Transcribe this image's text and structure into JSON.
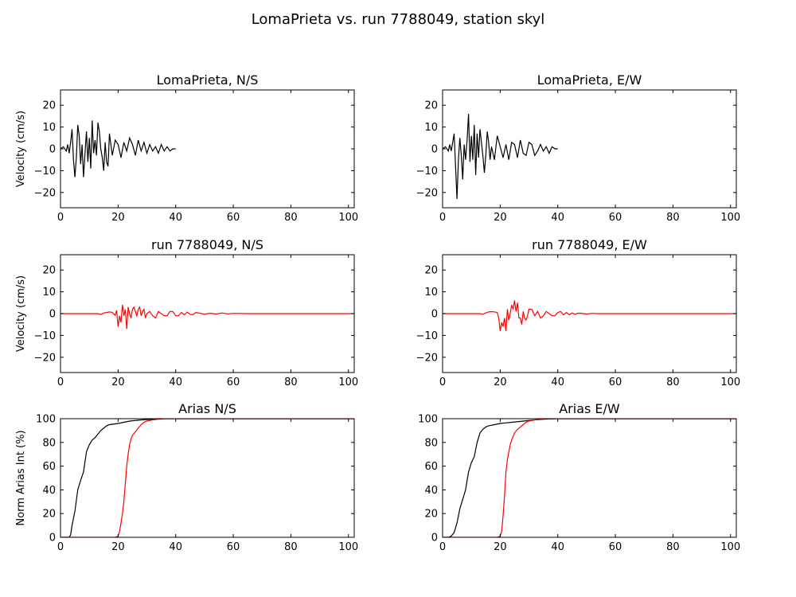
{
  "title": "LomaPrieta vs. run 7788049, station skyl",
  "colors": {
    "recorded": "#000000",
    "simulated": "#ff0000"
  },
  "chart_data": [
    {
      "id": "p0",
      "type": "line",
      "title": "LomaPrieta, N/S",
      "xlabel": "",
      "ylabel": "Velocity (cm/s)",
      "xlim": [
        0,
        102
      ],
      "ylim": [
        -27,
        27
      ],
      "xticks": [
        0,
        20,
        40,
        60,
        80,
        100
      ],
      "yticks": [
        -20,
        -10,
        0,
        10,
        20
      ],
      "series": [
        {
          "color": "#000000",
          "x": [
            0,
            1,
            2,
            2.5,
            3,
            3.5,
            4,
            4.5,
            5,
            5.5,
            6,
            6.5,
            7,
            7.5,
            8,
            8.5,
            9,
            9.5,
            10,
            10.5,
            11,
            11.5,
            12,
            12.5,
            13,
            13.5,
            14,
            14.5,
            15,
            15.5,
            16,
            16.5,
            17,
            18,
            19,
            20,
            21,
            22,
            23,
            24,
            25,
            26,
            27,
            28,
            29,
            30,
            31,
            32,
            33,
            34,
            35,
            36,
            37,
            38,
            39,
            40
          ],
          "y": [
            0,
            1,
            -1,
            2,
            -2,
            3,
            9,
            -5,
            -13,
            -4,
            11,
            6,
            -7,
            2,
            -13,
            -2,
            8,
            -6,
            5,
            -9,
            13,
            -2,
            4,
            -3,
            12,
            8,
            0,
            -4,
            -10,
            3,
            -6,
            -8,
            7,
            -3,
            4,
            2,
            -4,
            3,
            -1,
            5,
            2,
            -3,
            4,
            -1,
            3,
            -2,
            2,
            -1,
            1,
            -2,
            2,
            -1,
            1,
            -1,
            0,
            0
          ]
        }
      ]
    },
    {
      "id": "p1",
      "type": "line",
      "title": "LomaPrieta, E/W",
      "xlabel": "",
      "ylabel": "",
      "xlim": [
        0,
        102
      ],
      "ylim": [
        -27,
        27
      ],
      "xticks": [
        0,
        20,
        40,
        60,
        80,
        100
      ],
      "yticks": [
        -20,
        -10,
        0,
        10,
        20
      ],
      "series": [
        {
          "color": "#000000",
          "x": [
            0,
            1,
            2,
            2.5,
            3,
            3.5,
            4,
            4.5,
            5,
            5.5,
            6,
            6.5,
            7,
            7.5,
            8,
            8.5,
            9,
            9.5,
            10,
            10.5,
            11,
            11.5,
            12,
            12.5,
            13,
            13.5,
            14,
            14.5,
            15,
            15.5,
            16,
            16.5,
            17,
            18,
            19,
            20,
            21,
            22,
            23,
            24,
            25,
            26,
            27,
            28,
            29,
            30,
            31,
            32,
            33,
            34,
            35,
            36,
            37,
            38,
            39,
            40
          ],
          "y": [
            0,
            1,
            -1,
            2,
            -1,
            3,
            7,
            -8,
            -23,
            -5,
            5,
            -3,
            -14,
            2,
            -5,
            4,
            16,
            -6,
            6,
            -5,
            11,
            -12,
            7,
            -4,
            9,
            3,
            -3,
            -11,
            -3,
            8,
            3,
            -5,
            1,
            -5,
            6,
            1,
            -4,
            2,
            -5,
            3,
            2,
            -4,
            4,
            -2,
            -3,
            3,
            2,
            -3,
            -1,
            2,
            -1,
            1,
            -2,
            1,
            0,
            0
          ]
        }
      ]
    },
    {
      "id": "p2",
      "type": "line",
      "title": "run 7788049, N/S",
      "xlabel": "",
      "ylabel": "Velocity (cm/s)",
      "xlim": [
        0,
        102
      ],
      "ylim": [
        -27,
        27
      ],
      "xticks": [
        0,
        20,
        40,
        60,
        80,
        100
      ],
      "yticks": [
        -20,
        -10,
        0,
        10,
        20
      ],
      "series": [
        {
          "color": "#ff0000",
          "x": [
            0,
            13,
            14,
            15,
            16,
            17,
            18,
            19,
            19.5,
            20,
            20.5,
            21,
            21.5,
            22,
            22.5,
            23,
            23.5,
            24,
            24.5,
            25,
            25.5,
            26,
            26.5,
            27,
            27.5,
            28,
            28.5,
            29,
            29.5,
            30,
            31,
            32,
            33,
            34,
            35,
            36,
            37,
            38,
            39,
            40,
            41,
            42,
            43,
            44,
            45,
            46,
            47,
            48,
            50,
            52,
            54,
            56,
            58,
            60,
            65,
            70,
            102
          ],
          "y": [
            0,
            0,
            -0.4,
            0.3,
            0.5,
            0.8,
            0.6,
            -0.8,
            1.5,
            -6,
            -1,
            -4,
            4,
            -1,
            2,
            -7,
            3,
            0,
            -2,
            2,
            3,
            1,
            -1,
            2,
            3,
            -1,
            1,
            2,
            -2,
            0,
            1,
            -1,
            -2,
            1,
            0,
            -1,
            -1,
            1,
            1,
            -1,
            -1,
            0.5,
            -0.5,
            0.7,
            -0.3,
            -0.5,
            0.5,
            0.3,
            -0.3,
            0.2,
            -0.2,
            0.3,
            -0.1,
            0.1,
            0,
            0,
            0
          ]
        }
      ]
    },
    {
      "id": "p3",
      "type": "line",
      "title": "run 7788049, E/W",
      "xlabel": "",
      "ylabel": "",
      "xlim": [
        0,
        102
      ],
      "ylim": [
        -27,
        27
      ],
      "xticks": [
        0,
        20,
        40,
        60,
        80,
        100
      ],
      "yticks": [
        -20,
        -10,
        0,
        10,
        20
      ],
      "series": [
        {
          "color": "#ff0000",
          "x": [
            0,
            13,
            14,
            15,
            16,
            17,
            18,
            19,
            19.5,
            20,
            20.5,
            21,
            21.5,
            22,
            22.5,
            23,
            23.5,
            24,
            24.5,
            25,
            25.5,
            26,
            26.5,
            27,
            27.5,
            28,
            28.5,
            29,
            29.5,
            30,
            31,
            32,
            33,
            34,
            35,
            36,
            37,
            38,
            39,
            40,
            41,
            42,
            43,
            44,
            45,
            46,
            47,
            48,
            50,
            52,
            54,
            56,
            58,
            60,
            65,
            70,
            102
          ],
          "y": [
            0,
            0,
            -0.3,
            0.3,
            0.8,
            0.9,
            0.8,
            0.5,
            -2,
            -8,
            -4,
            -6,
            -2,
            -8,
            2,
            -3,
            0,
            4,
            2,
            6,
            1,
            5,
            -2,
            -2,
            -5,
            1,
            -2,
            -3,
            -1,
            2,
            2,
            -1,
            1,
            -2,
            -1,
            1,
            0,
            -1,
            -1,
            0.5,
            1,
            -0.5,
            0.5,
            -0.5,
            0.3,
            -0.3,
            0.2,
            0.2,
            -0.2,
            0.1,
            0,
            0,
            0,
            0,
            0,
            0,
            0
          ]
        }
      ]
    },
    {
      "id": "p4",
      "type": "line",
      "title": "Arias N/S",
      "xlabel": "",
      "ylabel": "Norm Arias Int (%)",
      "xlim": [
        0,
        102
      ],
      "ylim": [
        0,
        100
      ],
      "xticks": [
        0,
        20,
        40,
        60,
        80,
        100
      ],
      "yticks": [
        0,
        20,
        40,
        60,
        80,
        100
      ],
      "series": [
        {
          "color": "#000000",
          "x": [
            0,
            3,
            3.5,
            4,
            5,
            6,
            7,
            8,
            9,
            10,
            11,
            12,
            13,
            14,
            15,
            16,
            17,
            20,
            24,
            28,
            32,
            36,
            40,
            102
          ],
          "y": [
            0,
            0,
            2,
            10,
            22,
            40,
            48,
            55,
            72,
            78,
            82,
            84,
            87,
            90,
            92,
            94,
            95,
            96,
            98,
            99,
            99.5,
            100,
            100,
            100
          ]
        },
        {
          "color": "#ff0000",
          "x": [
            0,
            19,
            20,
            20.5,
            21,
            21.5,
            22,
            22.5,
            23,
            23.5,
            24,
            24.5,
            25,
            26,
            27,
            28,
            29,
            30,
            32,
            34,
            36,
            38,
            102
          ],
          "y": [
            0,
            0,
            1,
            5,
            12,
            20,
            30,
            45,
            60,
            70,
            78,
            83,
            86,
            89,
            92,
            95,
            97,
            98,
            99,
            99.5,
            100,
            100,
            100
          ]
        }
      ]
    },
    {
      "id": "p5",
      "type": "line",
      "title": "Arias E/W",
      "xlabel": "",
      "ylabel": "",
      "xlim": [
        0,
        102
      ],
      "ylim": [
        0,
        100
      ],
      "xticks": [
        0,
        20,
        40,
        60,
        80,
        100
      ],
      "yticks": [
        0,
        20,
        40,
        60,
        80,
        100
      ],
      "series": [
        {
          "color": "#000000",
          "x": [
            0,
            2,
            3,
            4,
            5,
            6,
            7,
            8,
            9,
            10,
            11,
            12,
            13,
            14,
            15,
            16,
            18,
            20,
            24,
            28,
            32,
            36,
            40,
            102
          ],
          "y": [
            0,
            0,
            1,
            4,
            12,
            24,
            32,
            40,
            55,
            63,
            68,
            80,
            88,
            91,
            93,
            94,
            95,
            96,
            97,
            98,
            99,
            99.7,
            100,
            100
          ]
        },
        {
          "color": "#ff0000",
          "x": [
            0,
            19,
            20,
            20.5,
            21,
            21.5,
            22,
            22.5,
            23,
            23.5,
            24,
            24.5,
            25,
            26,
            27,
            28,
            29,
            30,
            32,
            34,
            36,
            38,
            102
          ],
          "y": [
            0,
            0,
            1,
            5,
            18,
            35,
            55,
            65,
            72,
            78,
            82,
            85,
            88,
            91,
            93,
            95,
            97,
            98,
            99,
            99.5,
            100,
            100,
            100
          ]
        }
      ]
    }
  ]
}
